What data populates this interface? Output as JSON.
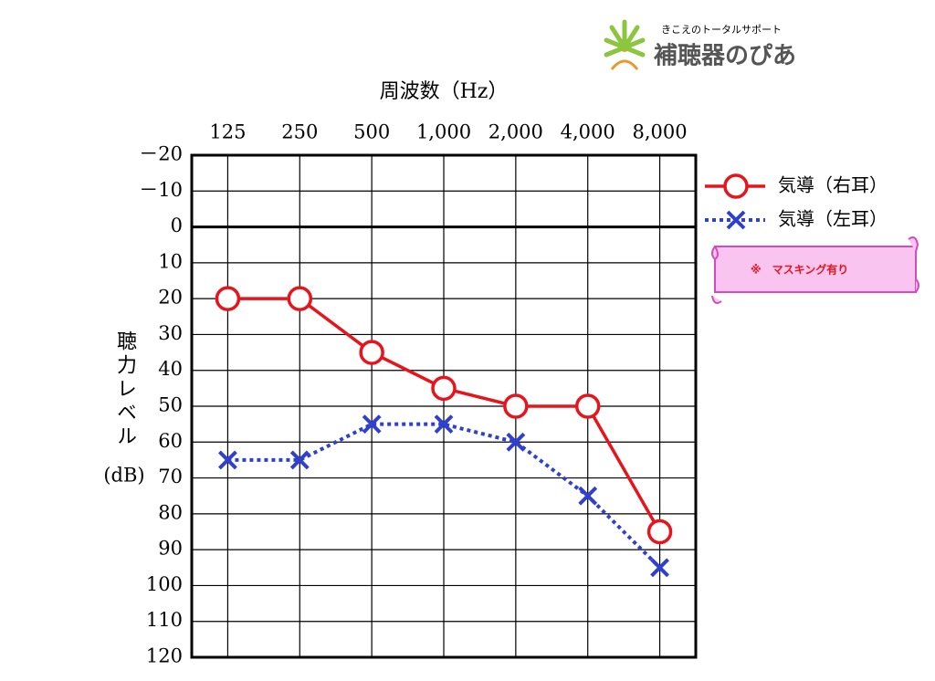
{
  "chart_data": {
    "type": "line",
    "x_label": "周波数（Hz）",
    "y_label": "聴力レベル",
    "y_unit": "(dB)",
    "categories": [
      "125",
      "250",
      "500",
      "1,000",
      "2,000",
      "4,000",
      "8,000"
    ],
    "series": [
      {
        "name": "気導（右耳）",
        "color": "#e8141b",
        "marker": "circle",
        "linestyle": "solid",
        "values": [
          20,
          20,
          35,
          45,
          50,
          50,
          85
        ]
      },
      {
        "name": "気導（左耳）",
        "color": "#2f3fd0",
        "marker": "x",
        "linestyle": "dotted",
        "values": [
          65,
          65,
          55,
          55,
          60,
          75,
          95
        ]
      }
    ],
    "ylim": [
      -20,
      120
    ],
    "y_inverted": true,
    "yticks": [
      {
        "value": -20,
        "label": "－20"
      },
      {
        "value": -10,
        "label": "－10"
      },
      0,
      10,
      20,
      30,
      40,
      50,
      60,
      70,
      80,
      90,
      100,
      110,
      120
    ],
    "grid": true,
    "legend": "right"
  },
  "note": "※　マスキング有り",
  "logo": {
    "tagline": "きこえのトータルサポート",
    "name": "補聴器のぴあ"
  }
}
